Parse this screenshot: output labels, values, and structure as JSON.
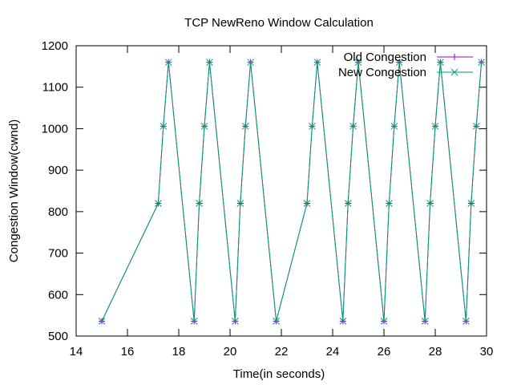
{
  "chart_data": {
    "type": "line",
    "title": "TCP NewReno Window Calculation",
    "xlabel": "Time(in seconds)",
    "ylabel": "Congestion Window(cwnd)",
    "xlim": [
      14,
      30
    ],
    "ylim": [
      500,
      1200
    ],
    "xticks": [
      14,
      16,
      18,
      20,
      22,
      24,
      26,
      28,
      30
    ],
    "yticks": [
      500,
      600,
      700,
      800,
      900,
      1000,
      1100,
      1200
    ],
    "grid": false,
    "legend_position": "top-right",
    "series": [
      {
        "name": "Old Congestion",
        "color": "#9400d3",
        "marker": "plus",
        "x": [
          15.0,
          17.2,
          17.4,
          17.6,
          18.6,
          18.8,
          19.0,
          19.2,
          20.2,
          20.4,
          20.6,
          20.8,
          21.8,
          23.0,
          23.2,
          23.4,
          24.4,
          24.6,
          24.8,
          25.0,
          26.0,
          26.2,
          26.4,
          26.6,
          27.6,
          27.8,
          28.0,
          28.2,
          29.2,
          29.4,
          29.6,
          29.8
        ],
        "y": [
          536,
          820,
          1006,
          1160,
          536,
          820,
          1006,
          1160,
          536,
          820,
          1006,
          1160,
          536,
          820,
          1006,
          1160,
          536,
          820,
          1006,
          1160,
          536,
          820,
          1006,
          1160,
          536,
          820,
          1006,
          1160,
          536,
          820,
          1006,
          1160
        ]
      },
      {
        "name": "New Congestion",
        "color": "#009e73",
        "marker": "cross",
        "x": [
          15.0,
          17.2,
          17.4,
          17.6,
          18.6,
          18.8,
          19.0,
          19.2,
          20.2,
          20.4,
          20.6,
          20.8,
          21.8,
          23.0,
          23.2,
          23.4,
          24.4,
          24.6,
          24.8,
          25.0,
          26.0,
          26.2,
          26.4,
          26.6,
          27.6,
          27.8,
          28.0,
          28.2,
          29.2,
          29.4,
          29.6,
          29.8
        ],
        "y": [
          536,
          820,
          1006,
          1160,
          536,
          820,
          1006,
          1160,
          536,
          820,
          1006,
          1160,
          536,
          820,
          1006,
          1160,
          536,
          820,
          1006,
          1160,
          536,
          820,
          1006,
          1160,
          536,
          820,
          1006,
          1160,
          536,
          820,
          1006,
          1160
        ]
      }
    ]
  }
}
